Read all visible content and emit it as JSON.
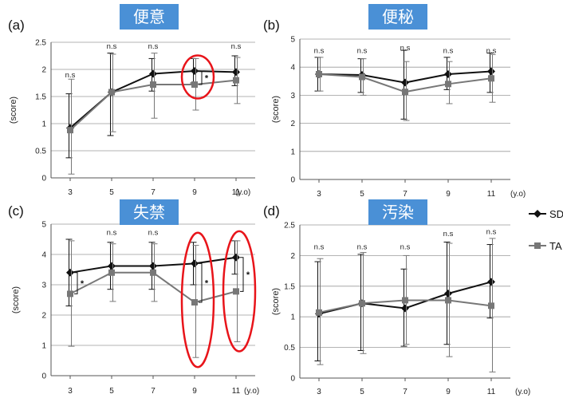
{
  "chart_data": [
    {
      "type": "line",
      "panel": "(a)",
      "title": "便意",
      "ylabel": "(score)",
      "xunit": "(y.o)",
      "ylim": [
        0,
        2.5
      ],
      "yticks": [
        "0",
        "0.5",
        "1",
        "1.5",
        "2",
        "2.5"
      ],
      "categories": [
        "3",
        "5",
        "7",
        "9",
        "11"
      ],
      "series": [
        {
          "name": "SD",
          "color": "#111111",
          "marker": "diamond",
          "values": [
            0.92,
            1.58,
            1.92,
            1.97,
            1.95
          ],
          "err_low": [
            0.37,
            0.78,
            1.6,
            1.75,
            1.7
          ],
          "err_high": [
            1.55,
            2.3,
            2.2,
            2.2,
            2.25
          ]
        },
        {
          "name": "TA",
          "color": "#777777",
          "marker": "square",
          "values": [
            0.88,
            1.58,
            1.72,
            1.72,
            1.8
          ],
          "err_low": [
            0.07,
            0.85,
            1.1,
            1.25,
            1.37
          ],
          "err_high": [
            1.82,
            2.28,
            2.3,
            2.2,
            2.22
          ]
        }
      ],
      "annotations": [
        {
          "cat": 0,
          "text": "n.s",
          "level": 1.85
        },
        {
          "cat": 1,
          "text": "n.s",
          "level": 2.38
        },
        {
          "cat": 2,
          "text": "n.s",
          "level": 2.38
        },
        {
          "cat": 4,
          "text": "n.s",
          "level": 2.38
        }
      ],
      "significance": [
        {
          "cat": 3,
          "text": "*",
          "low": 1.72,
          "high": 1.97
        }
      ],
      "highlight_cats": [
        3
      ]
    },
    {
      "type": "line",
      "panel": "(b)",
      "title": "便秘",
      "ylabel": "(score)",
      "xunit": "(y.o)",
      "ylim": [
        0,
        5
      ],
      "yticks": [
        "0",
        "1",
        "2",
        "3",
        "4",
        "5"
      ],
      "categories": [
        "3",
        "5",
        "7",
        "9",
        "11"
      ],
      "series": [
        {
          "name": "SD",
          "color": "#111111",
          "marker": "diamond",
          "values": [
            3.75,
            3.72,
            3.45,
            3.75,
            3.85
          ],
          "err_low": [
            3.15,
            3.1,
            2.15,
            3.2,
            3.1
          ],
          "err_high": [
            4.35,
            4.3,
            4.6,
            4.35,
            4.5
          ]
        },
        {
          "name": "TA",
          "color": "#777777",
          "marker": "square",
          "values": [
            3.75,
            3.65,
            3.12,
            3.4,
            3.6
          ],
          "err_low": [
            3.15,
            3.0,
            2.1,
            2.7,
            2.75
          ],
          "err_high": [
            4.35,
            4.3,
            4.2,
            4.2,
            4.45
          ]
        }
      ],
      "annotations": [
        {
          "cat": 0,
          "text": "n.s",
          "level": 4.5
        },
        {
          "cat": 1,
          "text": "n.s",
          "level": 4.5
        },
        {
          "cat": 2,
          "text": "n.s",
          "level": 4.6
        },
        {
          "cat": 3,
          "text": "n.s",
          "level": 4.5
        },
        {
          "cat": 4,
          "text": "n.s",
          "level": 4.5
        }
      ],
      "significance": [],
      "highlight_cats": []
    },
    {
      "type": "line",
      "panel": "(c)",
      "title": "失禁",
      "ylabel": "(score)",
      "xunit": "(y.o)",
      "ylim": [
        0,
        5
      ],
      "yticks": [
        "0",
        "1",
        "2",
        "3",
        "4",
        "5"
      ],
      "categories": [
        "3",
        "5",
        "7",
        "9",
        "11"
      ],
      "series": [
        {
          "name": "SD",
          "color": "#111111",
          "marker": "diamond",
          "values": [
            3.4,
            3.62,
            3.62,
            3.7,
            3.9
          ],
          "err_low": [
            2.3,
            2.85,
            2.85,
            3.0,
            3.35
          ],
          "err_high": [
            4.5,
            4.4,
            4.4,
            4.4,
            4.45
          ]
        },
        {
          "name": "TA",
          "color": "#777777",
          "marker": "square",
          "values": [
            2.7,
            3.4,
            3.4,
            2.42,
            2.78
          ],
          "err_low": [
            0.97,
            2.45,
            2.45,
            0.6,
            1.12
          ],
          "err_high": [
            4.45,
            4.35,
            4.35,
            4.3,
            4.45
          ]
        }
      ],
      "annotations": [
        {
          "cat": 1,
          "text": "n.s",
          "level": 4.65
        },
        {
          "cat": 2,
          "text": "n.s",
          "level": 4.65
        }
      ],
      "significance": [
        {
          "cat": 0,
          "text": "*",
          "low": 2.7,
          "high": 3.4
        },
        {
          "cat": 3,
          "text": "*",
          "low": 2.42,
          "high": 3.7
        },
        {
          "cat": 4,
          "text": "*",
          "low": 2.78,
          "high": 3.9
        }
      ],
      "highlight_cats": [
        3,
        4
      ]
    },
    {
      "type": "line",
      "panel": "(d)",
      "title": "汚染",
      "ylabel": "(score)",
      "xunit": "(y.o)",
      "ylim": [
        0,
        2.5
      ],
      "yticks": [
        "0",
        "0.5",
        "1",
        "1.5",
        "2",
        "2.5"
      ],
      "categories": [
        "3",
        "5",
        "7",
        "9",
        "11"
      ],
      "series": [
        {
          "name": "SD",
          "color": "#111111",
          "marker": "diamond",
          "values": [
            1.05,
            1.22,
            1.14,
            1.38,
            1.57
          ],
          "err_low": [
            0.28,
            0.45,
            0.52,
            0.55,
            0.98
          ],
          "err_high": [
            1.9,
            2.02,
            1.78,
            2.22,
            2.18
          ]
        },
        {
          "name": "TA",
          "color": "#777777",
          "marker": "square",
          "values": [
            1.07,
            1.22,
            1.27,
            1.27,
            1.18
          ],
          "err_low": [
            0.22,
            0.4,
            0.55,
            0.35,
            0.1
          ],
          "err_high": [
            1.95,
            2.05,
            2.0,
            2.2,
            2.28
          ]
        }
      ],
      "annotations": [
        {
          "cat": 0,
          "text": "n.s",
          "level": 2.1
        },
        {
          "cat": 1,
          "text": "n.s",
          "level": 2.1
        },
        {
          "cat": 2,
          "text": "n.s",
          "level": 2.1
        },
        {
          "cat": 3,
          "text": "n.s",
          "level": 2.32
        },
        {
          "cat": 4,
          "text": "n.s",
          "level": 2.35
        }
      ],
      "significance": [],
      "highlight_cats": []
    }
  ],
  "legend": [
    {
      "name": "SD",
      "marker": "diamond",
      "color": "#111111"
    },
    {
      "name": "TA",
      "marker": "square",
      "color": "#777777"
    }
  ],
  "colors": {
    "title_bg": "#4a90d6",
    "highlight": "#e8141a",
    "grid": "#9a9a9a"
  }
}
